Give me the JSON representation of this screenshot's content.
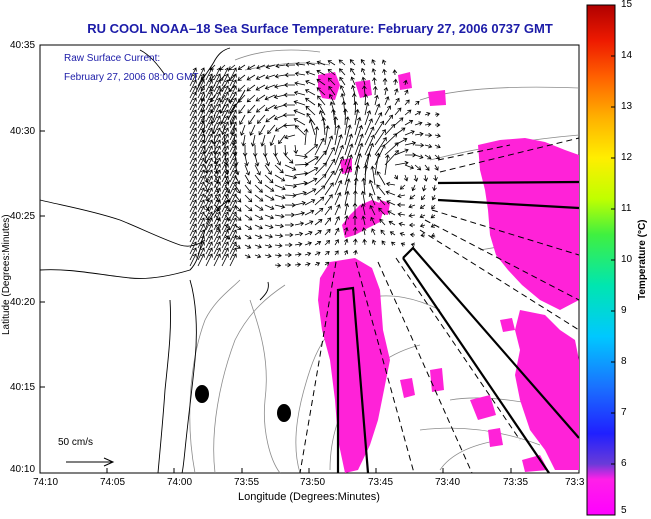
{
  "title": "RU COOL  NOAA–18  Sea Surface Temperature:  February 27, 2006 0737 GMT",
  "legend": {
    "line1": "Raw Surface Current:",
    "line2": "February 27, 2006 08:00 GMT"
  },
  "axes": {
    "xlabel": "Longitude (Degrees:Minutes)",
    "ylabel": "Latitude (Degrees:Minutes)",
    "x_ticks": [
      "74:10",
      "74:05",
      "74:00",
      "73:55",
      "73:50",
      "73:45",
      "73:40",
      "73:35",
      "73:3"
    ],
    "y_ticks": [
      "40:35",
      "40:30",
      "40:25",
      "40:20",
      "40:15",
      "40:10"
    ]
  },
  "colorbar": {
    "title": "Temperature (°C)",
    "ticks": [
      "15",
      "14",
      "13",
      "12",
      "11",
      "10",
      "9",
      "8",
      "7",
      "6",
      "5"
    ],
    "min": 5,
    "max": 15
  },
  "scale_vector": {
    "label": "50 cm/s"
  },
  "colors": {
    "sst_patch": "#ff22d8",
    "title_text": "#1c1ca8",
    "land_outline": "#000000",
    "bathymetry": "#8c8c8c"
  }
}
